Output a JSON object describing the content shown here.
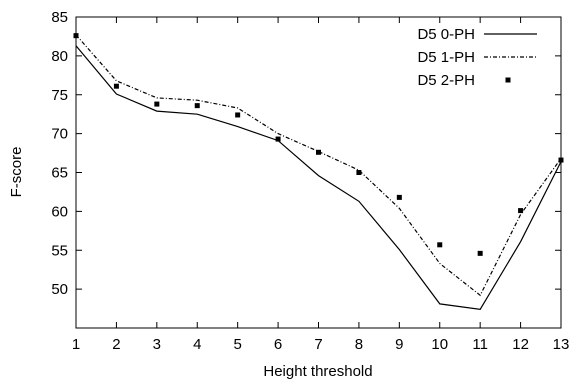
{
  "chart_data": {
    "type": "line",
    "xlabel": "Height threshold",
    "ylabel": "F-score",
    "xlim": [
      1,
      13
    ],
    "ylim": [
      45,
      85
    ],
    "x": [
      1,
      2,
      3,
      4,
      5,
      6,
      7,
      8,
      9,
      10,
      11,
      12,
      13
    ],
    "xticks": [
      "1",
      "2",
      "3",
      "4",
      "5",
      "6",
      "7",
      "8",
      "9",
      "10",
      "11",
      "12",
      "13"
    ],
    "yticks": [
      "50",
      "55",
      "60",
      "65",
      "70",
      "75",
      "80",
      "85"
    ],
    "grid": false,
    "legend_position": "top-right",
    "series": [
      {
        "name": "D5 0-PH",
        "style": "solid",
        "color": "#000000",
        "values": [
          81.3,
          75.1,
          72.9,
          72.5,
          70.9,
          69.1,
          64.6,
          61.3,
          55.1,
          48.1,
          47.4,
          56.1,
          66.4
        ]
      },
      {
        "name": "D5 1-PH",
        "style": "dashed",
        "color": "#000000",
        "values": [
          82.7,
          76.8,
          74.6,
          74.3,
          73.3,
          70.0,
          67.7,
          65.3,
          60.4,
          53.3,
          49.2,
          59.6,
          66.8
        ]
      },
      {
        "name": "D5 2-PH",
        "style": "points",
        "color": "#000000",
        "values": [
          82.6,
          76.1,
          73.8,
          73.6,
          72.4,
          69.3,
          67.6,
          65.0,
          61.8,
          55.7,
          54.6,
          60.1,
          66.6
        ]
      }
    ]
  }
}
